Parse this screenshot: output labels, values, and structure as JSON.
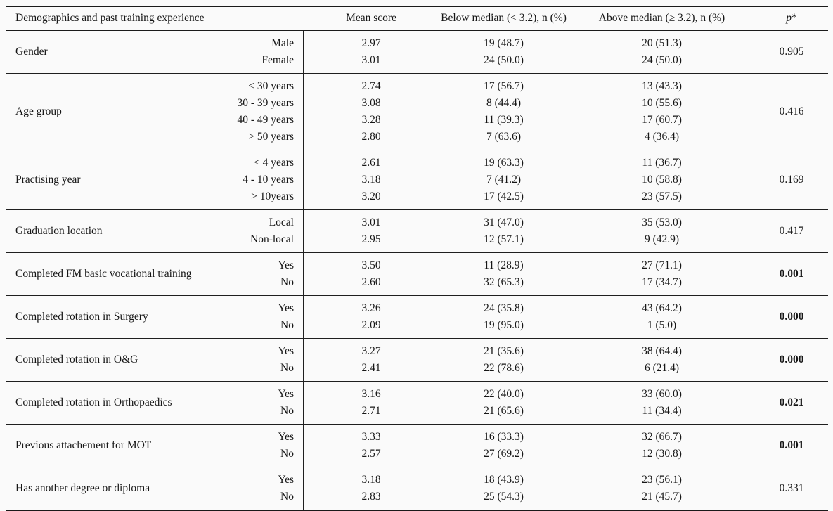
{
  "table": {
    "headers": {
      "col_demographics": "Demographics and past training experience",
      "col_mean": "Mean score",
      "col_below": "Below median (< 3.2), n (%)",
      "col_above": "Above median (≥ 3.2), n (%)",
      "col_p_letter": "p",
      "col_p_mark": "*"
    },
    "groups": [
      {
        "category": "Gender",
        "rows": [
          {
            "level": "Male",
            "mean": "2.97",
            "below": "19 (48.7)",
            "above": "20 (51.3)"
          },
          {
            "level": "Female",
            "mean": "3.01",
            "below": "24 (50.0)",
            "above": "24 (50.0)"
          }
        ],
        "p": "0.905",
        "p_bold": false
      },
      {
        "category": "Age group",
        "rows": [
          {
            "level": "< 30 years",
            "mean": "2.74",
            "below": "17 (56.7)",
            "above": "13 (43.3)"
          },
          {
            "level": "30 - 39 years",
            "mean": "3.08",
            "below": "8 (44.4)",
            "above": "10 (55.6)"
          },
          {
            "level": "40 - 49 years",
            "mean": "3.28",
            "below": "11 (39.3)",
            "above": "17 (60.7)"
          },
          {
            "level": "> 50 years",
            "mean": "2.80",
            "below": "7 (63.6)",
            "above": "4 (36.4)"
          }
        ],
        "p": "0.416",
        "p_bold": false
      },
      {
        "category": "Practising year",
        "rows": [
          {
            "level": "< 4 years",
            "mean": "2.61",
            "below": "19 (63.3)",
            "above": "11 (36.7)"
          },
          {
            "level": "4 - 10 years",
            "mean": "3.18",
            "below": "7 (41.2)",
            "above": "10 (58.8)"
          },
          {
            "level": "> 10years",
            "mean": "3.20",
            "below": "17 (42.5)",
            "above": "23 (57.5)"
          }
        ],
        "p": "0.169",
        "p_bold": false
      },
      {
        "category": "Graduation location",
        "rows": [
          {
            "level": "Local",
            "mean": "3.01",
            "below": "31 (47.0)",
            "above": "35 (53.0)"
          },
          {
            "level": "Non-local",
            "mean": "2.95",
            "below": "12 (57.1)",
            "above": "9 (42.9)"
          }
        ],
        "p": "0.417",
        "p_bold": false
      },
      {
        "category": "Completed FM basic vocational training",
        "rows": [
          {
            "level": "Yes",
            "mean": "3.50",
            "below": "11 (28.9)",
            "above": "27 (71.1)"
          },
          {
            "level": "No",
            "mean": "2.60",
            "below": "32 (65.3)",
            "above": "17 (34.7)"
          }
        ],
        "p": "0.001",
        "p_bold": true
      },
      {
        "category": "Completed rotation in Surgery",
        "rows": [
          {
            "level": "Yes",
            "mean": "3.26",
            "below": "24 (35.8)",
            "above": "43 (64.2)"
          },
          {
            "level": "No",
            "mean": "2.09",
            "below": "19 (95.0)",
            "above": "1 (5.0)"
          }
        ],
        "p": "0.000",
        "p_bold": true
      },
      {
        "category": "Completed rotation in O&G",
        "rows": [
          {
            "level": "Yes",
            "mean": "3.27",
            "below": "21 (35.6)",
            "above": "38 (64.4)"
          },
          {
            "level": "No",
            "mean": "2.41",
            "below": "22 (78.6)",
            "above": "6 (21.4)"
          }
        ],
        "p": "0.000",
        "p_bold": true
      },
      {
        "category": "Completed rotation in Orthopaedics",
        "rows": [
          {
            "level": "Yes",
            "mean": "3.16",
            "below": "22 (40.0)",
            "above": "33 (60.0)"
          },
          {
            "level": "No",
            "mean": "2.71",
            "below": "21 (65.6)",
            "above": "11 (34.4)"
          }
        ],
        "p": "0.021",
        "p_bold": true
      },
      {
        "category": "Previous attachement for  MOT",
        "rows": [
          {
            "level": "Yes",
            "mean": "3.33",
            "below": "16 (33.3)",
            "above": "32 (66.7)"
          },
          {
            "level": "No",
            "mean": "2.57",
            "below": "27 (69.2)",
            "above": "12 (30.8)"
          }
        ],
        "p": "0.001",
        "p_bold": true
      },
      {
        "category": "Has another degree or diploma",
        "rows": [
          {
            "level": "Yes",
            "mean": "3.18",
            "below": "18 (43.9)",
            "above": "23 (56.1)"
          },
          {
            "level": "No",
            "mean": "2.83",
            "below": "25 (54.3)",
            "above": "21 (45.7)"
          }
        ],
        "p": "0.331",
        "p_bold": false
      }
    ]
  }
}
